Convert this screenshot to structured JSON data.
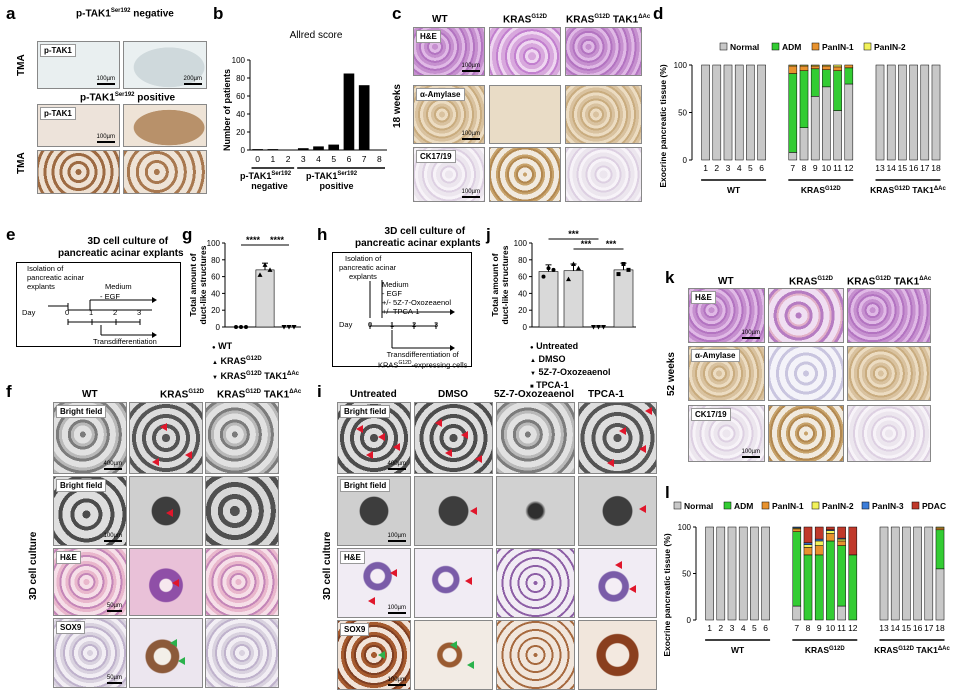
{
  "panels": {
    "a": {
      "letter": "a",
      "neg_title": "p-TAK1",
      "neg_title_sup": "Ser192",
      "neg_title_tail": "negative",
      "pos_title": "p-TAK1",
      "pos_title_sup": "Ser192",
      "pos_title_tail": "positive",
      "row_label": "TMA",
      "tile_label": "p-TAK1",
      "scale_100": "100µm",
      "scale_200": "200µm"
    },
    "b": {
      "letter": "b"
    },
    "c": {
      "letter": "c",
      "cols": [
        "WT",
        "KRAS",
        "KRAS"
      ],
      "col_sups": [
        "",
        "G12D",
        "G12D"
      ],
      "col_tail": "TAK1",
      "col_tail_sup": "ΔAc",
      "rows": [
        "H&E",
        "α-Amylase",
        "CK17/19"
      ],
      "side_label": "18 weeks",
      "scale": "100µm"
    },
    "d": {
      "letter": "d"
    },
    "e": {
      "letter": "e",
      "title_1": "3D cell culture of",
      "title_2": "pancreatic acinar explants",
      "iso_1": "Isolation of",
      "iso_2": "pancreatic acinar",
      "iso_3": "explants",
      "medium": "Medium",
      "egf": "- EGF",
      "day": "Day",
      "days": [
        "0",
        "1",
        "2",
        "3"
      ],
      "trans": "Transdifferentiation"
    },
    "g": {
      "letter": "g"
    },
    "h": {
      "letter": "h",
      "title_1": "3D cell culture of",
      "title_2": "pancreatic acinar explants",
      "iso_1": "Isolation of",
      "iso_2": "pancreatic acinar",
      "iso_3": "explants",
      "medium": "Medium",
      "egf": "- EGF",
      "oxo": "+/- 5Z-7-Oxozeaenol",
      "tpca": "+/- TPCA-1",
      "day": "Day",
      "days": [
        "0",
        "1",
        "2",
        "3"
      ],
      "trans_1": "Transdifferentiation of",
      "trans_2": "KRAS",
      "trans_2_sup": "G12D",
      "trans_2_tail": "-expressing cells"
    },
    "j": {
      "letter": "j"
    },
    "f": {
      "letter": "f",
      "cols": [
        "WT",
        "KRAS",
        "KRAS"
      ],
      "col_sups": [
        "",
        "G12D",
        "G12D"
      ],
      "col_tail": "TAK1",
      "col_tail_sup": "ΔAc",
      "rows": [
        "Bright field",
        "Bright field",
        "H&E",
        "SOX9"
      ],
      "side_label": "3D cell culture",
      "scale_400": "400µm",
      "scale_100": "100µm",
      "scale_50": "50µm"
    },
    "i": {
      "letter": "i",
      "cols": [
        "Untreated",
        "DMSO",
        "5Z-7-Oxozeaenol",
        "TPCA-1"
      ],
      "rows": [
        "Bright field",
        "Bright field",
        "H&E",
        "SOX9"
      ],
      "side_label": "3D cell culture",
      "scale_400": "400µm",
      "scale_100": "100µm"
    },
    "k": {
      "letter": "k",
      "cols": [
        "WT",
        "KRAS",
        "KRAS"
      ],
      "col_sups": [
        "",
        "G12D",
        "G12D"
      ],
      "col_tail": "TAK1",
      "col_tail_sup": "ΔAc",
      "rows": [
        "H&E",
        "α-Amylase",
        "CK17/19"
      ],
      "side_label": "52 weeks",
      "scale": "100µm"
    },
    "l": {
      "letter": "l"
    }
  },
  "chart_data": [
    {
      "id": "b",
      "type": "bar",
      "title": "Allred score",
      "ylabel": "Number of patients",
      "ylim": [
        0,
        100
      ],
      "yticks": [
        0,
        20,
        40,
        60,
        80,
        100
      ],
      "categories": [
        "0",
        "1",
        "2",
        "3",
        "4",
        "5",
        "6",
        "7",
        "8"
      ],
      "values": [
        1,
        1,
        0,
        2,
        4,
        6,
        85,
        72,
        0
      ],
      "group_labels": [
        {
          "text": "p-TAK1",
          "sup": "Ser192",
          "line2": "negative"
        },
        {
          "text": "p-TAK1",
          "sup": "Ser192",
          "line2": "positive"
        }
      ]
    },
    {
      "id": "d",
      "type": "bar",
      "stacked": true,
      "ylabel": "Exocrine pancreatic tissue (%)",
      "ylim": [
        0,
        100
      ],
      "yticks": [
        0,
        50,
        100
      ],
      "legend": [
        {
          "name": "Normal",
          "color": "#c8c8c8"
        },
        {
          "name": "ADM",
          "color": "#33cc33"
        },
        {
          "name": "PanIN-1",
          "color": "#e8922e"
        },
        {
          "name": "PanIN-2",
          "color": "#f2f25a"
        }
      ],
      "categories": [
        "1",
        "2",
        "3",
        "4",
        "5",
        "6",
        "7",
        "8",
        "9",
        "10",
        "11",
        "12",
        "13",
        "14",
        "15",
        "16",
        "17",
        "18"
      ],
      "series": [
        {
          "name": "Normal",
          "values": [
            100,
            100,
            100,
            100,
            100,
            100,
            8,
            34,
            67,
            77,
            52,
            80,
            100,
            100,
            100,
            100,
            100,
            100
          ]
        },
        {
          "name": "ADM",
          "values": [
            0,
            0,
            0,
            0,
            0,
            0,
            83,
            60,
            29,
            18,
            42,
            17,
            0,
            0,
            0,
            0,
            0,
            0
          ]
        },
        {
          "name": "PanIN-1",
          "values": [
            0,
            0,
            0,
            0,
            0,
            0,
            8,
            5,
            3,
            4,
            4,
            3,
            0,
            0,
            0,
            0,
            0,
            0
          ]
        },
        {
          "name": "PanIN-2",
          "values": [
            0,
            0,
            0,
            0,
            0,
            0,
            1,
            1,
            1,
            1,
            2,
            0,
            0,
            0,
            0,
            0,
            0,
            0
          ]
        }
      ],
      "group_labels": [
        {
          "text": "WT",
          "sup": ""
        },
        {
          "text": "KRAS",
          "sup": "G12D"
        },
        {
          "text": "KRAS",
          "sup": "G12D",
          "tail": "TAK1",
          "tail_sup": "ΔAc"
        }
      ]
    },
    {
      "id": "g",
      "type": "bar",
      "ylabel_1": "Total amount of",
      "ylabel_2": "duct-like structures",
      "ylim": [
        0,
        100
      ],
      "yticks": [
        0,
        20,
        40,
        60,
        80,
        100
      ],
      "categories": [
        "WT",
        "KRAS",
        "KRAS"
      ],
      "values": [
        0,
        68,
        0
      ],
      "points": [
        [
          0,
          0,
          0
        ],
        [
          62,
          74,
          68
        ],
        [
          0,
          0,
          0
        ]
      ],
      "significance": [
        "****",
        "****"
      ],
      "legend": [
        {
          "marker": "●",
          "text": "WT",
          "sup": ""
        },
        {
          "marker": "▲",
          "text": "KRAS",
          "sup": "G12D"
        },
        {
          "marker": "▼",
          "text": "KRAS",
          "sup": "G12D",
          "tail": "TAK1",
          "tail_sup": "ΔAc"
        }
      ]
    },
    {
      "id": "j",
      "type": "bar",
      "ylabel_1": "Total amount of",
      "ylabel_2": "duct-like structures",
      "ylim": [
        0,
        100
      ],
      "yticks": [
        0,
        20,
        40,
        60,
        80,
        100
      ],
      "categories": [
        "Untreated",
        "DMSO",
        "5Z-7-Oxozeaenol",
        "TPCA-1"
      ],
      "values": [
        66,
        67,
        0,
        68
      ],
      "points": [
        [
          60,
          70,
          68
        ],
        [
          57,
          75,
          70
        ],
        [
          0,
          0,
          0
        ],
        [
          63,
          75,
          68
        ]
      ],
      "significance": [
        "***",
        "***",
        "***"
      ],
      "legend": [
        {
          "marker": "●",
          "text": "Untreated"
        },
        {
          "marker": "▲",
          "text": "DMSO"
        },
        {
          "marker": "▼",
          "text": "5Z-7-Oxozeaenol"
        },
        {
          "marker": "■",
          "text": "TPCA-1"
        }
      ]
    },
    {
      "id": "l",
      "type": "bar",
      "stacked": true,
      "ylabel": "Exocrine pancreatic tissue (%)",
      "ylim": [
        0,
        100
      ],
      "yticks": [
        0,
        50,
        100
      ],
      "legend": [
        {
          "name": "Normal",
          "color": "#c8c8c8"
        },
        {
          "name": "ADM",
          "color": "#33cc33"
        },
        {
          "name": "PanIN-1",
          "color": "#e8922e"
        },
        {
          "name": "PanIN-2",
          "color": "#f2f25a"
        },
        {
          "name": "PanIN-3",
          "color": "#3c7dd9"
        },
        {
          "name": "PDAC",
          "color": "#c0392b"
        }
      ],
      "categories": [
        "1",
        "2",
        "3",
        "4",
        "5",
        "6",
        "7",
        "8",
        "9",
        "10",
        "11",
        "12",
        "13",
        "14",
        "15",
        "16",
        "17",
        "18"
      ],
      "series": [
        {
          "name": "Normal",
          "values": [
            100,
            100,
            100,
            100,
            100,
            100,
            15,
            0,
            0,
            0,
            15,
            0,
            100,
            100,
            100,
            100,
            100,
            55
          ]
        },
        {
          "name": "ADM",
          "values": [
            0,
            0,
            0,
            0,
            0,
            0,
            80,
            70,
            70,
            85,
            65,
            70,
            0,
            0,
            0,
            0,
            0,
            42
          ]
        },
        {
          "name": "PanIN-1",
          "values": [
            0,
            0,
            0,
            0,
            0,
            0,
            3,
            8,
            10,
            8,
            5,
            0,
            0,
            0,
            0,
            0,
            0,
            2
          ]
        },
        {
          "name": "PanIN-2",
          "values": [
            0,
            0,
            0,
            0,
            0,
            0,
            1,
            3,
            5,
            3,
            2,
            0,
            0,
            0,
            0,
            0,
            0,
            1
          ]
        },
        {
          "name": "PanIN-3",
          "values": [
            0,
            0,
            0,
            0,
            0,
            0,
            1,
            2,
            2,
            1,
            1,
            0,
            0,
            0,
            0,
            0,
            0,
            0
          ]
        },
        {
          "name": "PDAC",
          "values": [
            0,
            0,
            0,
            0,
            0,
            0,
            0,
            17,
            13,
            3,
            12,
            30,
            0,
            0,
            0,
            0,
            0,
            0
          ]
        }
      ],
      "group_labels": [
        {
          "text": "WT",
          "sup": ""
        },
        {
          "text": "KRAS",
          "sup": "G12D"
        },
        {
          "text": "KRAS",
          "sup": "G12D",
          "tail": "TAK1",
          "tail_sup": "ΔAc"
        }
      ]
    }
  ]
}
